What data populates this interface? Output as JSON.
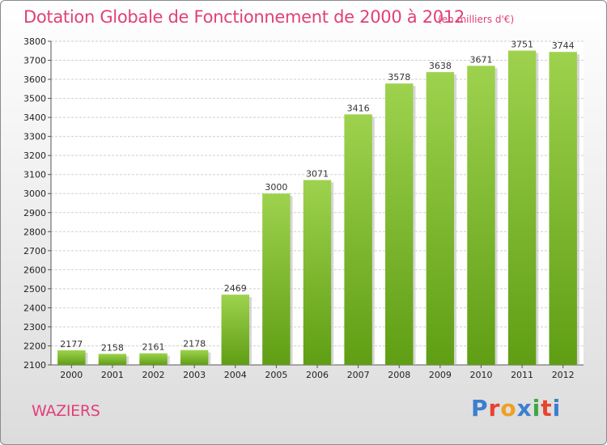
{
  "header": {
    "title": "Dotation Globale de Fonctionnement de 2000 à 2012",
    "unit_note": "(en milliers d'€)"
  },
  "footer": {
    "commune": "WAZIERS",
    "brand_letters": [
      "P",
      "r",
      "o",
      "x",
      "i",
      "t",
      "i"
    ],
    "brand_colors": [
      "#3a7fd0",
      "#e8432e",
      "#f0a020",
      "#3a7fd0",
      "#3aa845",
      "#e8432e",
      "#3a7fd0"
    ]
  },
  "colors": {
    "accent": "#e0407a",
    "bar_light": "#9ed24e",
    "bar_dark": "#5f9e14"
  },
  "chart_data": {
    "type": "bar",
    "title": "Dotation Globale de Fonctionnement de 2000 à 2012",
    "subtitle": "(en milliers d'€)",
    "xlabel": "",
    "ylabel": "",
    "categories": [
      "2000",
      "2001",
      "2002",
      "2003",
      "2004",
      "2005",
      "2006",
      "2007",
      "2008",
      "2009",
      "2010",
      "2011",
      "2012"
    ],
    "values": [
      2177,
      2158,
      2161,
      2178,
      2469,
      3000,
      3071,
      3416,
      3578,
      3638,
      3671,
      3751,
      3744
    ],
    "ylim": [
      2100,
      3800
    ],
    "yticks": [
      2100,
      2200,
      2300,
      2400,
      2500,
      2600,
      2700,
      2800,
      2900,
      3000,
      3100,
      3200,
      3300,
      3400,
      3500,
      3600,
      3700,
      3800
    ],
    "grid": true,
    "legend": "none"
  }
}
